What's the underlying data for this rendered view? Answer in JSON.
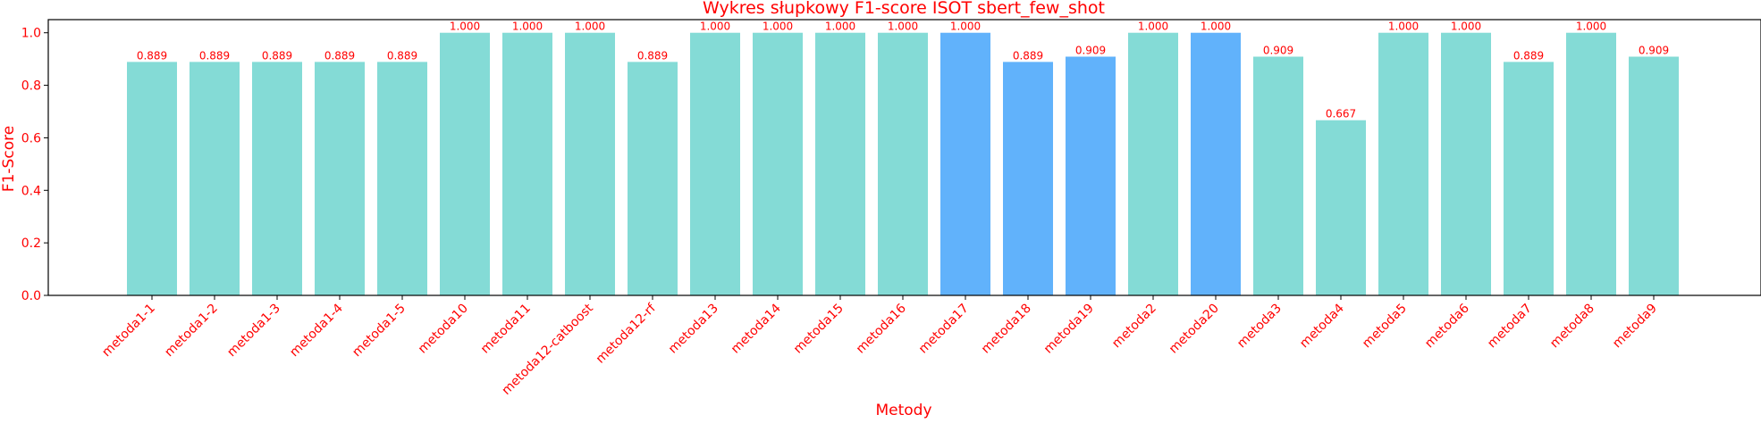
{
  "colors": {
    "text": "#ff0000",
    "bar_default": "#84dbd6",
    "bar_highlight": "#61b2fb",
    "axis": "#000000"
  },
  "chart_data": {
    "type": "bar",
    "title": "Wykres słupkowy F1-score ISOT sbert_few_shot",
    "xlabel": "Metody",
    "ylabel": "F1-Score",
    "ylim": [
      0,
      1.05
    ],
    "yticks": [
      "0.0",
      "0.2",
      "0.4",
      "0.6",
      "0.8",
      "1.0"
    ],
    "grid": false,
    "categories": [
      "metoda1-1",
      "metoda1-2",
      "metoda1-3",
      "metoda1-4",
      "metoda1-5",
      "metoda10",
      "metoda11",
      "metoda12-catboost",
      "metoda12-rf",
      "metoda13",
      "metoda14",
      "metoda15",
      "metoda16",
      "metoda17",
      "metoda18",
      "metoda19",
      "metoda2",
      "metoda20",
      "metoda3",
      "metoda4",
      "metoda5",
      "metoda6",
      "metoda7",
      "metoda8",
      "metoda9"
    ],
    "values": [
      0.889,
      0.889,
      0.889,
      0.889,
      0.889,
      1.0,
      1.0,
      1.0,
      0.889,
      1.0,
      1.0,
      1.0,
      1.0,
      1.0,
      0.889,
      0.909,
      1.0,
      1.0,
      0.909,
      0.667,
      1.0,
      1.0,
      0.889,
      1.0,
      0.909
    ],
    "value_labels": [
      "0.889",
      "0.889",
      "0.889",
      "0.889",
      "0.889",
      "1.000",
      "1.000",
      "1.000",
      "0.889",
      "1.000",
      "1.000",
      "1.000",
      "1.000",
      "1.000",
      "0.889",
      "0.909",
      "1.000",
      "1.000",
      "0.909",
      "0.667",
      "1.000",
      "1.000",
      "0.889",
      "1.000",
      "0.909"
    ],
    "highlighted": [
      false,
      false,
      false,
      false,
      false,
      false,
      false,
      false,
      false,
      false,
      false,
      false,
      false,
      true,
      true,
      true,
      false,
      true,
      false,
      false,
      false,
      false,
      false,
      false,
      false
    ]
  }
}
